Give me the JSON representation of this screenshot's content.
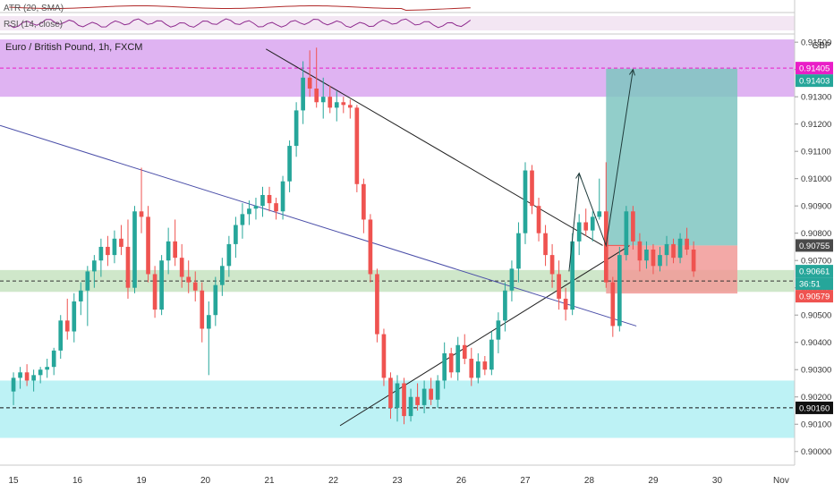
{
  "title": "Euro / British Pound, 1h, FXCM",
  "currency": "GBP",
  "indicators": {
    "atr_label": "ATR (20, SMA)",
    "rsi_label": "RSI (14, close)"
  },
  "colors": {
    "up": "#26a69a",
    "down": "#ef5350",
    "purple_zone": "#d9a6f0",
    "cyan_zone": "#b2f0f3",
    "green_zone": "#c7e3c1",
    "target": "#7fc6c1",
    "stop": "#f19a98",
    "trend_blue": "#4a4ea8"
  },
  "price_tags": [
    {
      "label": "0.91405",
      "value": 0.91405,
      "color": "#e91ec7"
    },
    {
      "label": "0.91403",
      "value": 0.91403,
      "color": "#26a69a"
    },
    {
      "label": "0.90755",
      "value": 0.90755,
      "color": "#4a4a4a"
    },
    {
      "label": "0.90661",
      "value": 0.90661,
      "color": "#26a69a"
    },
    {
      "label": "36:51",
      "value": 0.90625,
      "color": "#26a69a"
    },
    {
      "label": "0.90579",
      "value": 0.90579,
      "color": "#ef5350"
    },
    {
      "label": "0.90160",
      "value": 0.9016,
      "color": "#111111"
    }
  ],
  "chart_data": {
    "type": "candlestick",
    "title": "Euro / British Pound, 1h, FXCM",
    "ylim": [
      0.8995,
      0.9153
    ],
    "y_ticks": [
      "0.91500",
      "0.91400",
      "0.91300",
      "0.91200",
      "0.91100",
      "0.91000",
      "0.90900",
      "0.90800",
      "0.90700",
      "0.90600",
      "0.90500",
      "0.90400",
      "0.90300",
      "0.90200",
      "0.90100",
      "0.90000"
    ],
    "x_ticks": [
      "15",
      "16",
      "19",
      "20",
      "21",
      "22",
      "23",
      "26",
      "27",
      "28",
      "29",
      "30",
      "Nov"
    ],
    "x_tick_positions": [
      0,
      9.5,
      19,
      28.5,
      38,
      47.5,
      57,
      66.5,
      76,
      85.5,
      95,
      104.5,
      114
    ],
    "x_range": [
      -2,
      116
    ],
    "candles": [
      [
        0.9022,
        0.9029,
        0.9017,
        0.9027
      ],
      [
        0.9027,
        0.9031,
        0.9023,
        0.9029
      ],
      [
        0.9029,
        0.9032,
        0.9024,
        0.9026
      ],
      [
        0.9026,
        0.903,
        0.9022,
        0.9028
      ],
      [
        0.9028,
        0.9031,
        0.9025,
        0.903
      ],
      [
        0.903,
        0.9034,
        0.9027,
        0.9031
      ],
      [
        0.9031,
        0.9038,
        0.9028,
        0.9037
      ],
      [
        0.9037,
        0.905,
        0.9034,
        0.9048
      ],
      [
        0.9048,
        0.9056,
        0.9041,
        0.9044
      ],
      [
        0.9044,
        0.9058,
        0.904,
        0.9055
      ],
      [
        0.9055,
        0.9062,
        0.905,
        0.9059
      ],
      [
        0.9059,
        0.9068,
        0.9046,
        0.9066
      ],
      [
        0.9066,
        0.9072,
        0.906,
        0.907
      ],
      [
        0.907,
        0.9078,
        0.9064,
        0.9075
      ],
      [
        0.9075,
        0.9079,
        0.9068,
        0.9072
      ],
      [
        0.9072,
        0.9081,
        0.9069,
        0.9078
      ],
      [
        0.9078,
        0.9083,
        0.9072,
        0.9075
      ],
      [
        0.9075,
        0.9085,
        0.9056,
        0.906
      ],
      [
        0.906,
        0.909,
        0.9058,
        0.9088
      ],
      [
        0.9088,
        0.9104,
        0.908,
        0.9086
      ],
      [
        0.9086,
        0.909,
        0.9062,
        0.9065
      ],
      [
        0.9065,
        0.9068,
        0.9049,
        0.9052
      ],
      [
        0.9052,
        0.9072,
        0.905,
        0.907
      ],
      [
        0.907,
        0.9082,
        0.9065,
        0.9077
      ],
      [
        0.9077,
        0.9085,
        0.9068,
        0.9071
      ],
      [
        0.9071,
        0.9076,
        0.906,
        0.9064
      ],
      [
        0.9064,
        0.907,
        0.9058,
        0.9062
      ],
      [
        0.9062,
        0.9066,
        0.9055,
        0.9059
      ],
      [
        0.9059,
        0.9062,
        0.904,
        0.9045
      ],
      [
        0.9045,
        0.9055,
        0.9028,
        0.905
      ],
      [
        0.905,
        0.9064,
        0.9046,
        0.9061
      ],
      [
        0.9061,
        0.9071,
        0.9057,
        0.9068
      ],
      [
        0.9068,
        0.9079,
        0.9064,
        0.9076
      ],
      [
        0.9076,
        0.9086,
        0.9071,
        0.9083
      ],
      [
        0.9083,
        0.9091,
        0.9078,
        0.9087
      ],
      [
        0.9087,
        0.9092,
        0.9083,
        0.9089
      ],
      [
        0.9089,
        0.9093,
        0.9085,
        0.909
      ],
      [
        0.909,
        0.9097,
        0.9086,
        0.9094
      ],
      [
        0.9094,
        0.9097,
        0.9088,
        0.9091
      ],
      [
        0.9091,
        0.9093,
        0.9085,
        0.9088
      ],
      [
        0.9088,
        0.9101,
        0.9085,
        0.9099
      ],
      [
        0.9099,
        0.9114,
        0.9095,
        0.9112
      ],
      [
        0.9112,
        0.9128,
        0.9108,
        0.9125
      ],
      [
        0.9125,
        0.9143,
        0.912,
        0.9137
      ],
      [
        0.9137,
        0.9147,
        0.913,
        0.9133
      ],
      [
        0.9133,
        0.9148,
        0.9126,
        0.9128
      ],
      [
        0.9128,
        0.9137,
        0.9122,
        0.913
      ],
      [
        0.913,
        0.9134,
        0.9124,
        0.9126
      ],
      [
        0.9126,
        0.9132,
        0.9121,
        0.9128
      ],
      [
        0.9128,
        0.913,
        0.9124,
        0.9127
      ],
      [
        0.9127,
        0.9129,
        0.9122,
        0.9126
      ],
      [
        0.9126,
        0.9127,
        0.9095,
        0.9098
      ],
      [
        0.9098,
        0.91,
        0.908,
        0.9085
      ],
      [
        0.9085,
        0.9087,
        0.9062,
        0.9065
      ],
      [
        0.9065,
        0.9067,
        0.904,
        0.9043
      ],
      [
        0.9043,
        0.9045,
        0.9024,
        0.9027
      ],
      [
        0.9027,
        0.9029,
        0.9012,
        0.9016
      ],
      [
        0.9016,
        0.9028,
        0.9011,
        0.9025
      ],
      [
        0.9025,
        0.9027,
        0.901,
        0.9013
      ],
      [
        0.9013,
        0.9023,
        0.9011,
        0.902
      ],
      [
        0.902,
        0.9025,
        0.9015,
        0.9017
      ],
      [
        0.9017,
        0.9026,
        0.9014,
        0.9023
      ],
      [
        0.9023,
        0.9027,
        0.9017,
        0.9019
      ],
      [
        0.9019,
        0.9028,
        0.9016,
        0.9026
      ],
      [
        0.9026,
        0.904,
        0.9023,
        0.9036
      ],
      [
        0.9036,
        0.9038,
        0.9027,
        0.9029
      ],
      [
        0.9029,
        0.9042,
        0.9026,
        0.9039
      ],
      [
        0.9039,
        0.9043,
        0.9032,
        0.9034
      ],
      [
        0.9034,
        0.9038,
        0.9024,
        0.9027
      ],
      [
        0.9027,
        0.9036,
        0.9025,
        0.9033
      ],
      [
        0.9033,
        0.9035,
        0.9028,
        0.903
      ],
      [
        0.903,
        0.9044,
        0.9028,
        0.9041
      ],
      [
        0.9041,
        0.9051,
        0.9036,
        0.9048
      ],
      [
        0.9048,
        0.9062,
        0.9044,
        0.9059
      ],
      [
        0.9059,
        0.907,
        0.9055,
        0.9067
      ],
      [
        0.9067,
        0.9084,
        0.9062,
        0.908
      ],
      [
        0.908,
        0.9106,
        0.9076,
        0.9103
      ],
      [
        0.9103,
        0.9105,
        0.9087,
        0.909
      ],
      [
        0.909,
        0.9093,
        0.9077,
        0.908
      ],
      [
        0.908,
        0.9083,
        0.9068,
        0.9072
      ],
      [
        0.9072,
        0.9076,
        0.906,
        0.9065
      ],
      [
        0.9065,
        0.907,
        0.9052,
        0.9056
      ],
      [
        0.9056,
        0.906,
        0.9048,
        0.9052
      ],
      [
        0.9052,
        0.908,
        0.905,
        0.9077
      ],
      [
        0.9077,
        0.9087,
        0.9072,
        0.9084
      ],
      [
        0.9084,
        0.9089,
        0.9079,
        0.9081
      ],
      [
        0.9081,
        0.9088,
        0.9077,
        0.9086
      ],
      [
        0.9086,
        0.91,
        0.9085,
        0.9088
      ],
      [
        0.9088,
        0.9106,
        0.906,
        0.9062
      ],
      [
        0.9062,
        0.9064,
        0.9042,
        0.9046
      ],
      [
        0.9046,
        0.9075,
        0.9044,
        0.9072
      ],
      [
        0.9072,
        0.909,
        0.907,
        0.9088
      ],
      [
        0.9088,
        0.909,
        0.9074,
        0.9077
      ],
      [
        0.9077,
        0.908,
        0.9066,
        0.907
      ],
      [
        0.907,
        0.9077,
        0.9067,
        0.9074
      ],
      [
        0.9074,
        0.9076,
        0.9065,
        0.9068
      ],
      [
        0.9068,
        0.9075,
        0.9066,
        0.9072
      ],
      [
        0.9072,
        0.9079,
        0.9068,
        0.9076
      ],
      [
        0.9076,
        0.9078,
        0.9069,
        0.9071
      ],
      [
        0.9071,
        0.908,
        0.9069,
        0.9078
      ],
      [
        0.9078,
        0.9082,
        0.9072,
        0.9074
      ],
      [
        0.9074,
        0.9077,
        0.9064,
        0.9066
      ]
    ],
    "zones": [
      {
        "name": "resistance",
        "from": 0.913,
        "to": 0.9151,
        "color": "#d9a6f0"
      },
      {
        "name": "pivot",
        "from": 0.90625,
        "to": 0.90665,
        "color": "#c7e3c1"
      },
      {
        "name": "pivot-lower",
        "from": 0.90585,
        "to": 0.90625,
        "color": "#c7e3c1"
      },
      {
        "name": "support",
        "from": 0.9005,
        "to": 0.9026,
        "color": "#b2f0f3"
      }
    ],
    "trendlines": [
      {
        "name": "descending-upper",
        "from": [
          37.5,
          0.91475
        ],
        "to": [
          87.5,
          0.90755
        ],
        "color": "#222222"
      },
      {
        "name": "ascending-lower",
        "from": [
          48.5,
          0.90095
        ],
        "to": [
          91.5,
          0.90755
        ],
        "color": "#222222"
      },
      {
        "name": "long-blue",
        "from": [
          -2,
          0.91195
        ],
        "to": [
          92.5,
          0.9046
        ],
        "color": "#4a4ea8"
      }
    ],
    "position": {
      "entry": 0.90755,
      "target": 0.91403,
      "stop": 0.90579,
      "x_from": 88,
      "x_to": 107.5
    },
    "projection": [
      [
        82.5,
        0.9066
      ],
      [
        84,
        0.9102
      ],
      [
        88,
        0.90755
      ],
      [
        92,
        0.914
      ]
    ],
    "horizontal_lines": [
      {
        "value": 0.91405,
        "style": "dashed",
        "color": "#e91ec7"
      },
      {
        "value": 0.90625,
        "style": "dashed",
        "color": "#333333"
      },
      {
        "value": 0.9016,
        "style": "dashed",
        "color": "#111111"
      }
    ]
  }
}
